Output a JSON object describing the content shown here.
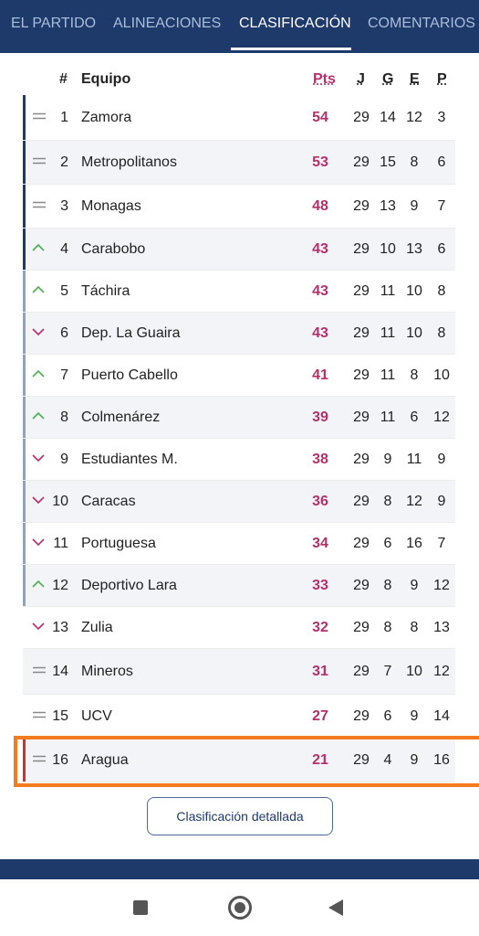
{
  "tabs": [
    {
      "label": "EL PARTIDO",
      "active": false
    },
    {
      "label": "ALINEACIONES",
      "active": false
    },
    {
      "label": "CLASIFICACIÓN",
      "active": true
    },
    {
      "label": "COMENTARIOS",
      "active": false
    }
  ],
  "header": {
    "pos": "#",
    "team": "Equipo",
    "pts": "Pts",
    "j": "J",
    "g": "G",
    "e": "E",
    "p": "P"
  },
  "colors": {
    "navy": "#1d3a6b",
    "points": "#b5306a",
    "up": "#4caf50",
    "down": "#b5306a",
    "same": "#888888",
    "zone_top": "#1d3a6b",
    "zone_second": "#8da3c4",
    "relegation": "#d32f2f",
    "highlight": "#f57b20"
  },
  "rows": [
    {
      "trend": "same",
      "zone": "top",
      "pos": "1",
      "team": "Zamora",
      "pts": "54",
      "j": "29",
      "g": "14",
      "e": "12",
      "p": "3"
    },
    {
      "trend": "same",
      "zone": "top",
      "pos": "2",
      "team": "Metropolitanos",
      "pts": "53",
      "j": "29",
      "g": "15",
      "e": "8",
      "p": "6"
    },
    {
      "trend": "same",
      "zone": "top",
      "pos": "3",
      "team": "Monagas",
      "pts": "48",
      "j": "29",
      "g": "13",
      "e": "9",
      "p": "7"
    },
    {
      "trend": "up",
      "zone": "top",
      "pos": "4",
      "team": "Carabobo",
      "pts": "43",
      "j": "29",
      "g": "10",
      "e": "13",
      "p": "6"
    },
    {
      "trend": "up",
      "zone": "second",
      "pos": "5",
      "team": "Táchira",
      "pts": "43",
      "j": "29",
      "g": "11",
      "e": "10",
      "p": "8"
    },
    {
      "trend": "down",
      "zone": "second",
      "pos": "6",
      "team": "Dep. La Guaira",
      "pts": "43",
      "j": "29",
      "g": "11",
      "e": "10",
      "p": "8"
    },
    {
      "trend": "up",
      "zone": "second",
      "pos": "7",
      "team": "Puerto Cabello",
      "pts": "41",
      "j": "29",
      "g": "11",
      "e": "8",
      "p": "10"
    },
    {
      "trend": "up",
      "zone": "second",
      "pos": "8",
      "team": "Colmenárez",
      "pts": "39",
      "j": "29",
      "g": "11",
      "e": "6",
      "p": "12"
    },
    {
      "trend": "down",
      "zone": "second",
      "pos": "9",
      "team": "Estudiantes M.",
      "pts": "38",
      "j": "29",
      "g": "9",
      "e": "11",
      "p": "9"
    },
    {
      "trend": "down",
      "zone": "second",
      "pos": "10",
      "team": "Caracas",
      "pts": "36",
      "j": "29",
      "g": "8",
      "e": "12",
      "p": "9"
    },
    {
      "trend": "down",
      "zone": "second",
      "pos": "11",
      "team": "Portuguesa",
      "pts": "34",
      "j": "29",
      "g": "6",
      "e": "16",
      "p": "7"
    },
    {
      "trend": "up",
      "zone": "second",
      "pos": "12",
      "team": "Deportivo Lara",
      "pts": "33",
      "j": "29",
      "g": "8",
      "e": "9",
      "p": "12"
    },
    {
      "trend": "down",
      "zone": "none",
      "pos": "13",
      "team": "Zulia",
      "pts": "32",
      "j": "29",
      "g": "8",
      "e": "8",
      "p": "13"
    },
    {
      "trend": "same",
      "zone": "none",
      "pos": "14",
      "team": "Mineros",
      "pts": "31",
      "j": "29",
      "g": "7",
      "e": "10",
      "p": "12"
    },
    {
      "trend": "same",
      "zone": "none",
      "pos": "15",
      "team": "UCV",
      "pts": "27",
      "j": "29",
      "g": "6",
      "e": "9",
      "p": "14"
    },
    {
      "trend": "same",
      "zone": "relegation",
      "pos": "16",
      "team": "Aragua",
      "pts": "21",
      "j": "29",
      "g": "4",
      "e": "9",
      "p": "16"
    }
  ],
  "detail_button": "Clasificación detallada"
}
